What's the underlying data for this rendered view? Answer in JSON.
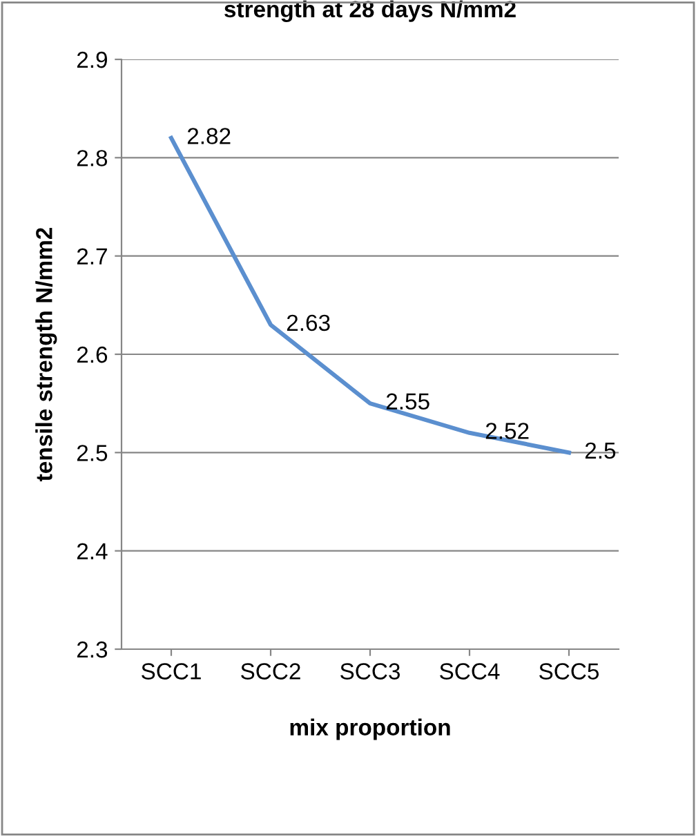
{
  "chart_data": {
    "type": "line",
    "title": "strength at 28 days N/mm2",
    "xlabel": "mix proportion",
    "ylabel": "tensile strength N/mm2",
    "categories": [
      "SCC1",
      "SCC2",
      "SCC3",
      "SCC4",
      "SCC5"
    ],
    "series": [
      {
        "color": "#5b8fcf",
        "values": [
          2.82,
          2.63,
          2.55,
          2.52,
          2.5
        ]
      }
    ],
    "ylim": [
      2.3,
      2.9
    ],
    "yticks": [
      2.3,
      2.4,
      2.5,
      2.6,
      2.7,
      2.8,
      2.9
    ],
    "grid": "y",
    "data_labels": true,
    "marker": "none",
    "line_style": "solid"
  }
}
